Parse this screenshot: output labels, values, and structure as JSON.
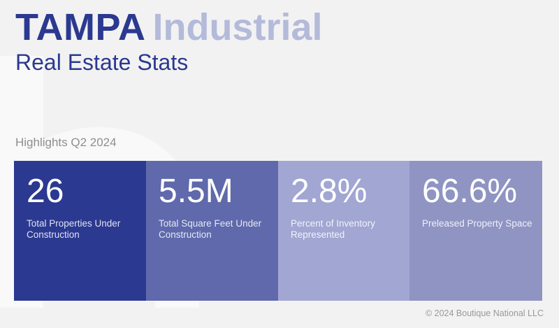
{
  "title": {
    "city": "TAMPA",
    "sector": "Industrial",
    "subtitle": "Real Estate Stats"
  },
  "section_label": "Highlights Q2 2024",
  "stats": [
    {
      "value": "26",
      "label": "Total Properties Under Construction",
      "bg": "#2b3990",
      "label_color": "#dfe2f3"
    },
    {
      "value": "5.5M",
      "label": "Total Square Feet Under Construction",
      "bg": "#5f69ab",
      "label_color": "#e6e8f4"
    },
    {
      "value": "2.8%",
      "label": "Percent of Inventory Represented",
      "bg": "#a1a6d2",
      "label_color": "#f2f3fa"
    },
    {
      "value": "66.6%",
      "label": "Preleased Property Space",
      "bg": "#8f94c2",
      "label_color": "#f0f1f8"
    }
  ],
  "footer": "© 2024 Boutique National LLC",
  "colors": {
    "brand_navy": "#2b3990",
    "brand_light": "#b4bad9",
    "background": "#f2f2f2"
  }
}
